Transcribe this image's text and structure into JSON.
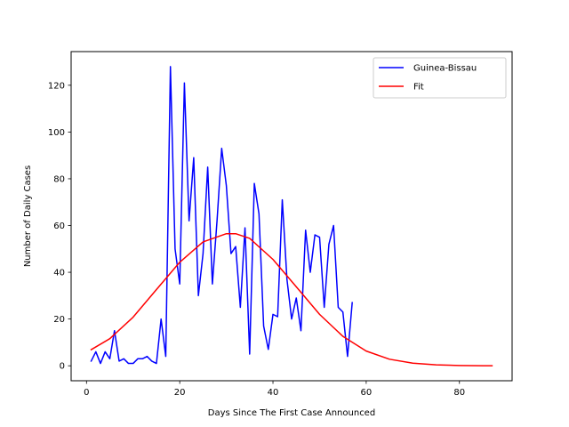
{
  "chart_data": {
    "type": "line",
    "xlabel": "Days Since The First Case Announced",
    "ylabel": "Number of Daily Cases",
    "xlim": [
      -3.3,
      91.3
    ],
    "ylim": [
      -6.4,
      134.4
    ],
    "xticks": [
      0,
      20,
      40,
      60,
      80
    ],
    "yticks": [
      0,
      20,
      40,
      60,
      80,
      100,
      120
    ],
    "grid": false,
    "legend_position": "top-right",
    "series": [
      {
        "name": "Guinea-Bissau",
        "color": "#0000ff",
        "x": [
          1,
          2,
          3,
          4,
          5,
          6,
          7,
          8,
          9,
          10,
          11,
          12,
          13,
          14,
          15,
          16,
          17,
          18,
          19,
          20,
          21,
          22,
          23,
          24,
          25,
          26,
          27,
          28,
          29,
          30,
          31,
          32,
          33,
          34,
          35,
          36,
          37,
          38,
          39,
          40,
          41,
          42,
          43,
          44,
          45,
          46,
          47,
          48,
          49,
          50,
          51,
          52,
          53,
          54,
          55,
          56,
          57
        ],
        "y": [
          2,
          6,
          1,
          6,
          3,
          15,
          2,
          3,
          1,
          1,
          3,
          3,
          4,
          2,
          1,
          20,
          4,
          128,
          50,
          35,
          121,
          62,
          89,
          30,
          48,
          85,
          35,
          62,
          93,
          77,
          48,
          51,
          25,
          59,
          5,
          78,
          65,
          17,
          7,
          22,
          21,
          71,
          37,
          20,
          29,
          15,
          58,
          40,
          56,
          55,
          25,
          52,
          60,
          25,
          23,
          4,
          27
        ]
      },
      {
        "name": "Fit",
        "color": "#ff0000",
        "x": [
          1,
          5,
          10,
          15,
          20,
          25,
          30,
          32,
          35,
          40,
          45,
          50,
          55,
          60,
          65,
          70,
          75,
          80,
          85,
          87
        ],
        "y": [
          6.9,
          11.6,
          20.8,
          32.6,
          44.3,
          53.0,
          56.5,
          56.5,
          54.5,
          45.5,
          33.8,
          22.0,
          12.6,
          6.3,
          2.8,
          1.1,
          0.4,
          0.12,
          0.03,
          0.02
        ]
      }
    ]
  }
}
